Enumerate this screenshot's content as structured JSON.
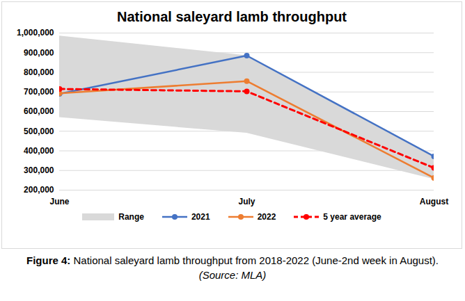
{
  "chart_data": {
    "type": "line",
    "title": "National saleyard lamb throughput",
    "categories": [
      "June",
      "July",
      "August"
    ],
    "series": [
      {
        "name": "Range",
        "type": "area",
        "color": "#d9d9d9",
        "lower": [
          570000,
          490000,
          255000
        ],
        "upper": [
          985000,
          885000,
          375000
        ]
      },
      {
        "name": "2021",
        "color": "#4472c4",
        "marker": "circle",
        "line_style": "solid",
        "values": [
          690000,
          885000,
          372000
        ]
      },
      {
        "name": "2022",
        "color": "#ed7d31",
        "marker": "circle",
        "line_style": "solid",
        "values": [
          693000,
          755000,
          262000
        ]
      },
      {
        "name": "5 year average",
        "color": "#ff0000",
        "marker": "circle",
        "line_style": "dashed",
        "values": [
          715000,
          703000,
          313000
        ]
      }
    ],
    "ylim": [
      200000,
      1000000
    ],
    "yticks": [
      {
        "value": 200000,
        "label": "200,000"
      },
      {
        "value": 300000,
        "label": "300,000"
      },
      {
        "value": 400000,
        "label": "400,000"
      },
      {
        "value": 500000,
        "label": "500,000"
      },
      {
        "value": 600000,
        "label": "600,000"
      },
      {
        "value": 700000,
        "label": "700,000"
      },
      {
        "value": 800000,
        "label": "800,000"
      },
      {
        "value": 900000,
        "label": "900,000"
      },
      {
        "value": 1000000,
        "label": "1,000,000"
      }
    ],
    "grid": true,
    "legend": "bottom",
    "caption_label": "Figure 4:",
    "caption": "National saleyard lamb throughput from 2018-2022 (June-2nd week in August).",
    "source": "(Source: MLA)"
  }
}
